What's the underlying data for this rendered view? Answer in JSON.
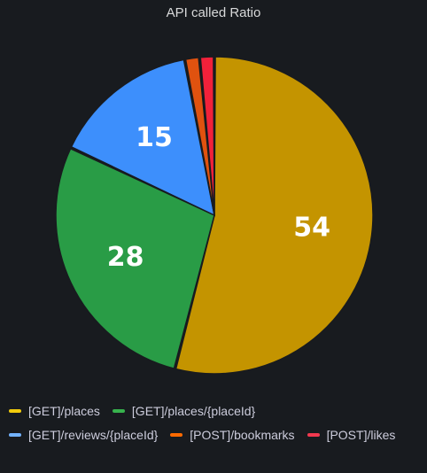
{
  "panel": {
    "title": "API called Ratio"
  },
  "chart_data": {
    "type": "pie",
    "title": "API called Ratio",
    "slices": [
      {
        "name": "[GET]/places",
        "value": 54,
        "color": "#c49400",
        "label": "54"
      },
      {
        "name": "[GET]/places/{placeId}",
        "value": 28,
        "color": "#299c46",
        "label": "28"
      },
      {
        "name": "[GET]/reviews/{placeId}",
        "value": 15,
        "color": "#3d8ffc",
        "label": "15"
      },
      {
        "name": "[POST]/bookmarks",
        "value": 1.5,
        "color": "#e0520f",
        "label": ""
      },
      {
        "name": "[POST]/likes",
        "value": 1.5,
        "color": "#f2213a",
        "label": ""
      }
    ],
    "legend_position": "bottom"
  },
  "legend": {
    "items": [
      {
        "label": "[GET]/places",
        "color": "#f2cc0c"
      },
      {
        "label": "[GET]/places/{placeId}",
        "color": "#37b24d"
      },
      {
        "label": "[GET]/reviews/{placeId}",
        "color": "#73b3ff"
      },
      {
        "label": "[POST]/bookmarks",
        "color": "#ff6a00"
      },
      {
        "label": "[POST]/likes",
        "color": "#f2394f"
      }
    ]
  }
}
